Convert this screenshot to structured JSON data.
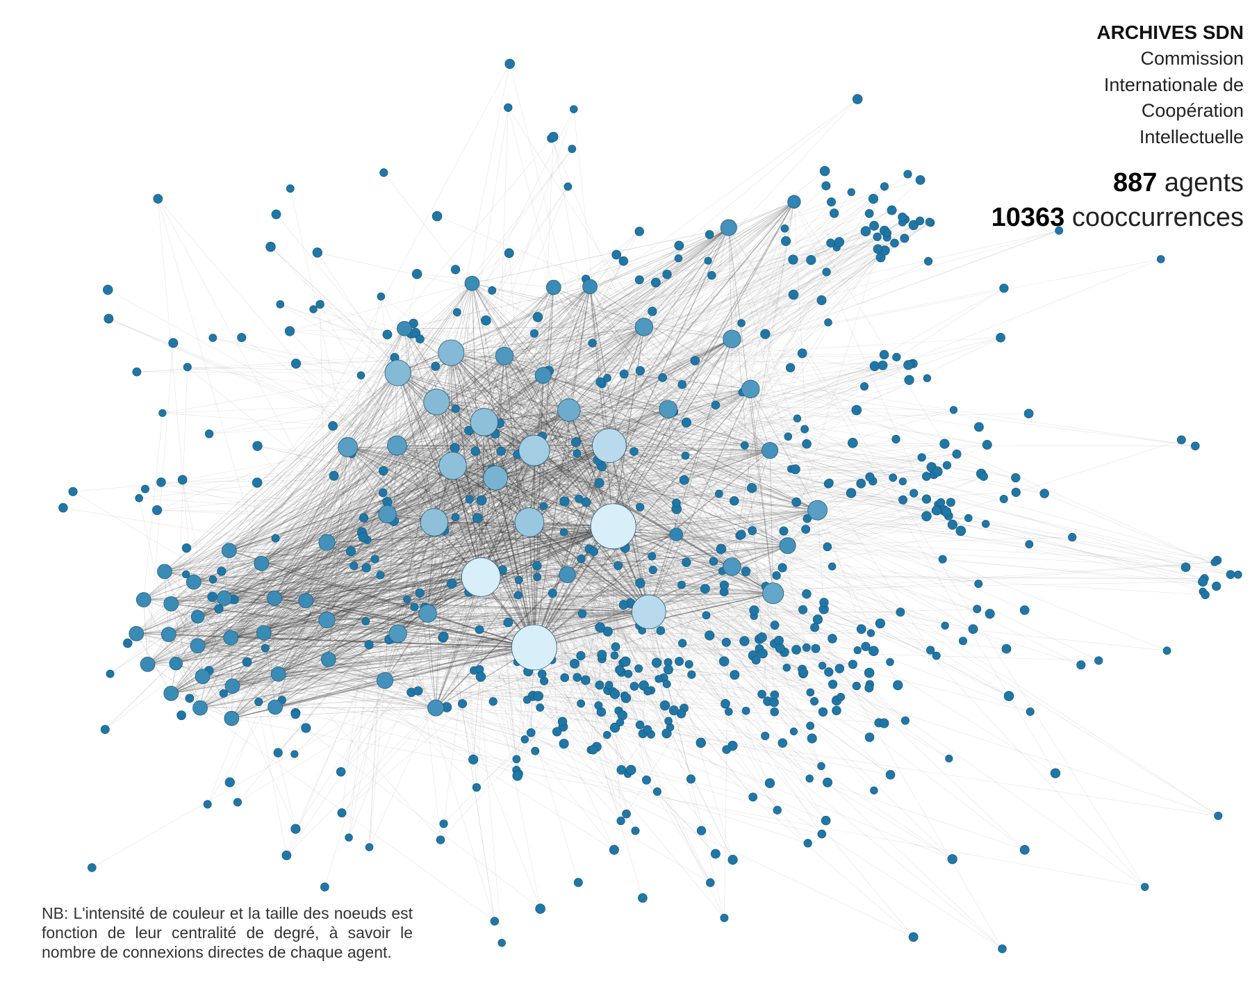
{
  "header": {
    "title": "ARCHIVES SDN",
    "subtitle_lines": [
      "Commission",
      "Internationale de",
      "Coopération",
      "Intellectuelle"
    ]
  },
  "stats": [
    {
      "value": "887",
      "label": "agents"
    },
    {
      "value": "10363",
      "label": "cooccurrences"
    }
  ],
  "note": "NB: L'intensité de couleur et la taille des noeuds est fonction de leur centralité de degré, à savoir le nombre de connexions directes de chaque agent."
}
